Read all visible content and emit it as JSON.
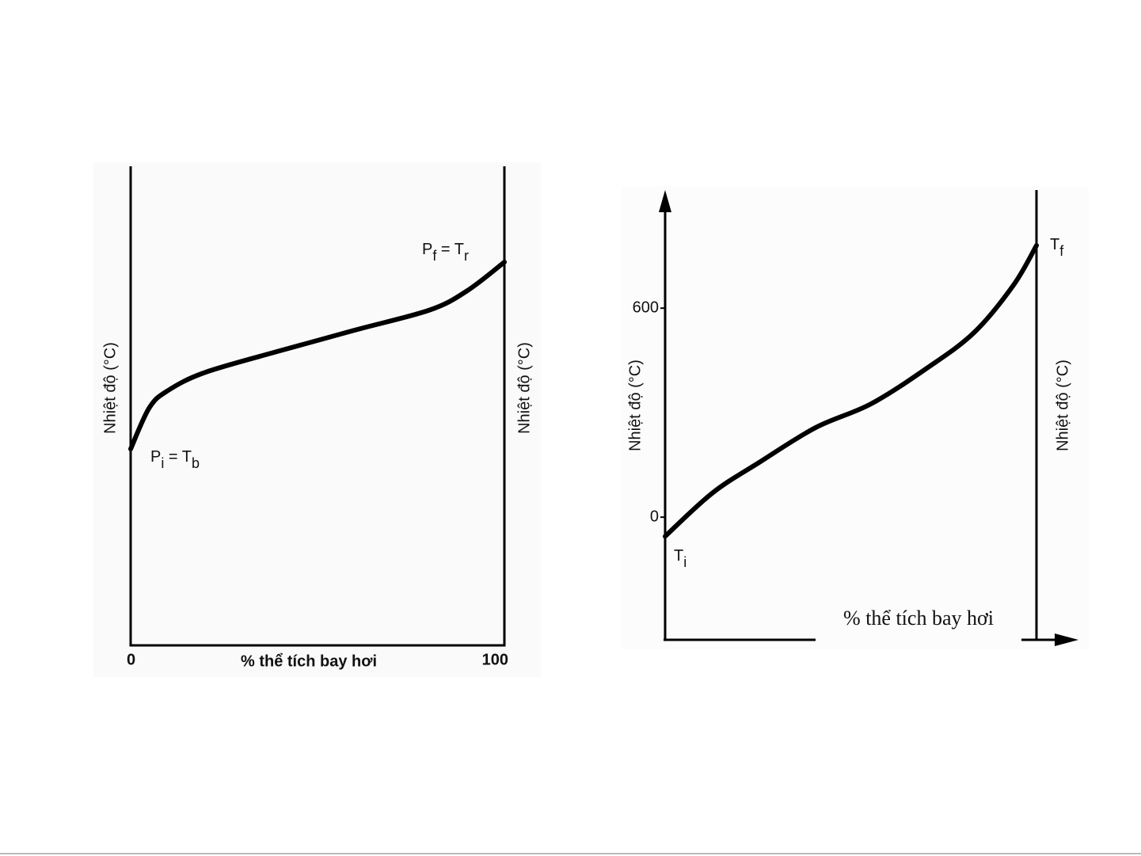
{
  "chart_data": [
    {
      "type": "line",
      "xlabel": "% thể tích bay hơi",
      "ylabel": "Nhiệt độ (°C)",
      "ylabel_right": "Nhiệt độ (°C)",
      "x": [
        0,
        5,
        10,
        20,
        40,
        60,
        80,
        90,
        100
      ],
      "series": [
        {
          "color": "#000000",
          "values": [
            41,
            49.6,
            53.2,
            57,
            61.5,
            65.8,
            70,
            74,
            80
          ]
        }
      ],
      "xlim": [
        0,
        100
      ],
      "xticks": [
        0,
        100
      ],
      "ylim": [
        0,
        100
      ],
      "annotations": [
        {
          "parts": [
            "P",
            "i",
            " = T",
            "b"
          ]
        },
        {
          "parts": [
            "P",
            "f",
            " = T",
            "r"
          ]
        }
      ]
    },
    {
      "type": "line",
      "xlabel": "% thể tích bay hơi",
      "ylabel": "Nhiệt độ (°C)",
      "ylabel_right": "Nhiệt độ (°C)",
      "x": [
        0,
        12.8,
        25.6,
        40.5,
        55.4,
        70.4,
        83.2,
        93.8,
        100
      ],
      "series": [
        {
          "color": "#000000",
          "values": [
            -55,
            70,
            159,
            257,
            325,
            427,
            530,
            666,
            780
          ]
        }
      ],
      "xlim": [
        0,
        100
      ],
      "ylim": [
        -352,
        939
      ],
      "yticks": [
        0,
        600
      ],
      "annotations": [
        {
          "parts": [
            "T",
            "i"
          ]
        },
        {
          "parts": [
            "T",
            "f"
          ]
        }
      ]
    }
  ]
}
